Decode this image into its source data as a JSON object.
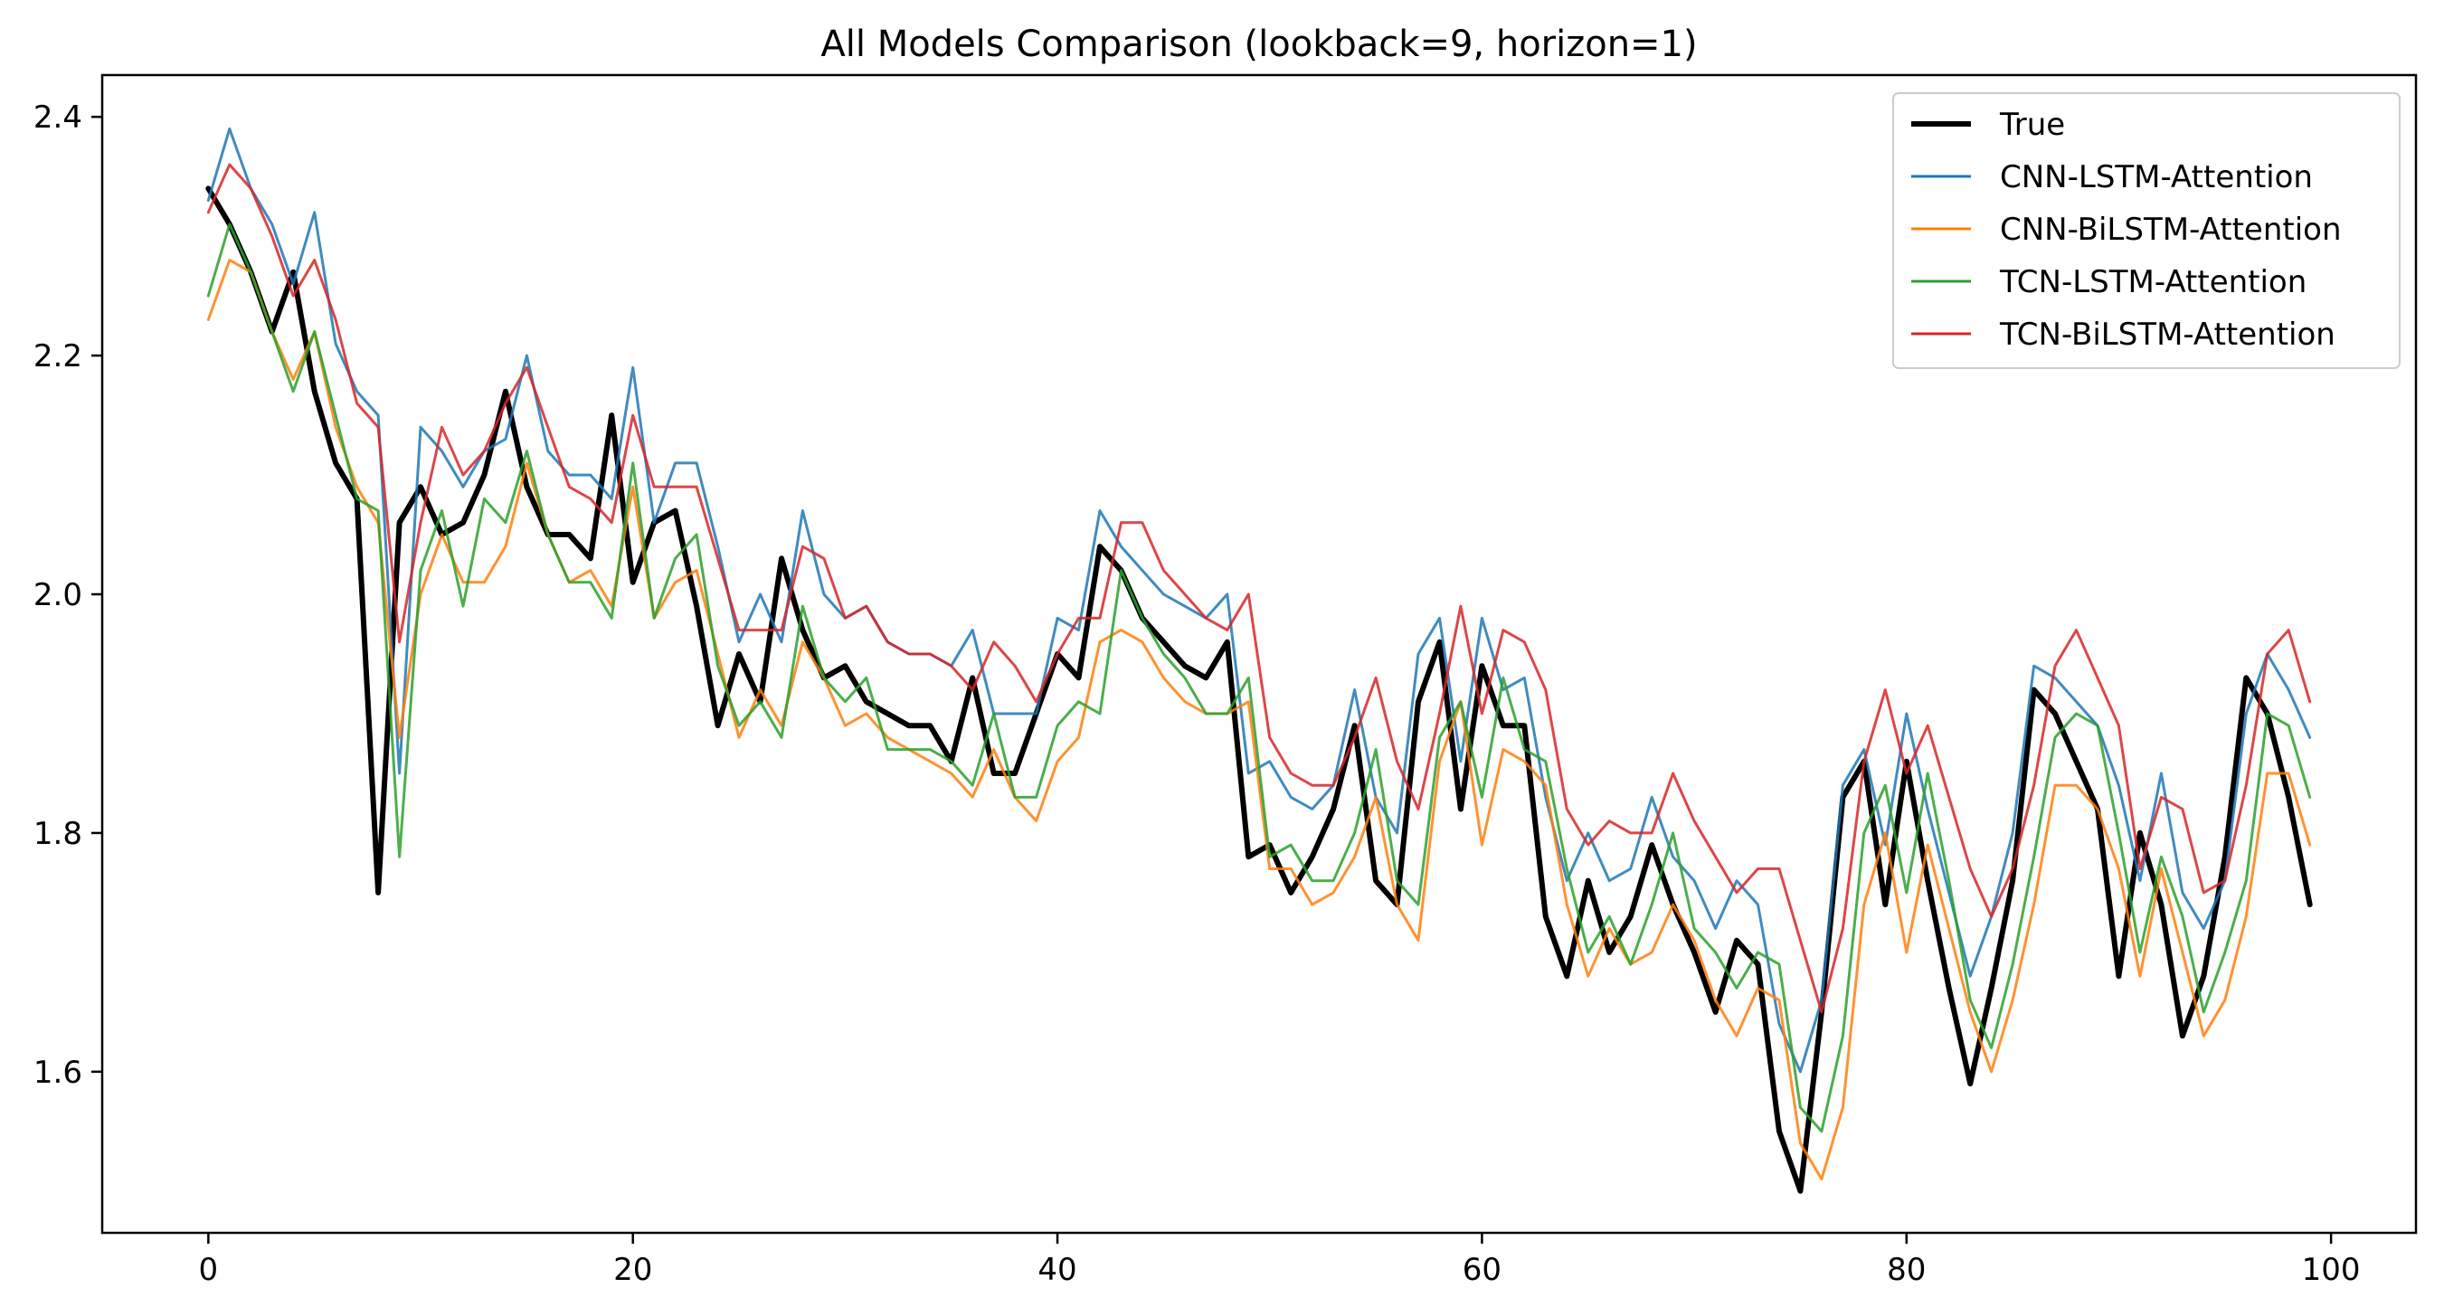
{
  "chart_data": {
    "type": "line",
    "title": "All Models Comparison (lookback=9, horizon=1)",
    "xlabel": "",
    "ylabel": "",
    "xlim": [
      -5,
      104
    ],
    "ylim": [
      1.465,
      2.435
    ],
    "xticks": [
      0,
      20,
      40,
      60,
      80,
      100
    ],
    "yticks": [
      1.6,
      1.8,
      2.0,
      2.2,
      2.4
    ],
    "grid": false,
    "legend_position": "top-right",
    "x": [
      0,
      1,
      2,
      3,
      4,
      5,
      6,
      7,
      8,
      9,
      10,
      11,
      12,
      13,
      14,
      15,
      16,
      17,
      18,
      19,
      20,
      21,
      22,
      23,
      24,
      25,
      26,
      27,
      28,
      29,
      30,
      31,
      32,
      33,
      34,
      35,
      36,
      37,
      38,
      39,
      40,
      41,
      42,
      43,
      44,
      45,
      46,
      47,
      48,
      49,
      50,
      51,
      52,
      53,
      54,
      55,
      56,
      57,
      58,
      59,
      60,
      61,
      62,
      63,
      64,
      65,
      66,
      67,
      68,
      69,
      70,
      71,
      72,
      73,
      74,
      75,
      76,
      77,
      78,
      79,
      80,
      81,
      82,
      83,
      84,
      85,
      86,
      87,
      88,
      89,
      90,
      91,
      92,
      93,
      94,
      95,
      96,
      97,
      98,
      99
    ],
    "series": [
      {
        "name": "True",
        "color": "#000000",
        "width": 6,
        "values": [
          2.34,
          2.31,
          2.27,
          2.22,
          2.27,
          2.17,
          2.11,
          2.08,
          1.75,
          2.06,
          2.09,
          2.05,
          2.06,
          2.1,
          2.17,
          2.09,
          2.05,
          2.05,
          2.03,
          2.15,
          2.01,
          2.06,
          2.07,
          1.99,
          1.89,
          1.95,
          1.91,
          2.03,
          1.97,
          1.93,
          1.94,
          1.91,
          1.9,
          1.89,
          1.89,
          1.86,
          1.93,
          1.85,
          1.85,
          1.9,
          1.95,
          1.93,
          2.04,
          2.02,
          1.98,
          1.96,
          1.94,
          1.93,
          1.96,
          1.78,
          1.79,
          1.75,
          1.78,
          1.82,
          1.89,
          1.76,
          1.74,
          1.91,
          1.96,
          1.82,
          1.94,
          1.89,
          1.89,
          1.73,
          1.68,
          1.76,
          1.7,
          1.73,
          1.79,
          1.74,
          1.7,
          1.65,
          1.71,
          1.69,
          1.55,
          1.5,
          1.65,
          1.83,
          1.86,
          1.74,
          1.86,
          1.76,
          1.67,
          1.59,
          1.67,
          1.76,
          1.92,
          1.9,
          1.86,
          1.82,
          1.68,
          1.8,
          1.74,
          1.63,
          1.68,
          1.78,
          1.93,
          1.9,
          1.83,
          1.74
        ]
      },
      {
        "name": "CNN-LSTM-Attention",
        "color": "#1f77b4",
        "width": 3,
        "values": [
          2.33,
          2.39,
          2.34,
          2.31,
          2.26,
          2.32,
          2.21,
          2.17,
          2.15,
          1.85,
          2.14,
          2.12,
          2.09,
          2.12,
          2.13,
          2.2,
          2.12,
          2.1,
          2.1,
          2.08,
          2.19,
          2.06,
          2.11,
          2.11,
          2.04,
          1.96,
          2.0,
          1.96,
          2.07,
          2.0,
          1.98,
          1.99,
          1.96,
          1.95,
          1.95,
          1.94,
          1.97,
          1.9,
          1.9,
          1.9,
          1.98,
          1.97,
          2.07,
          2.04,
          2.02,
          2.0,
          1.99,
          1.98,
          2.0,
          1.85,
          1.86,
          1.83,
          1.82,
          1.84,
          1.92,
          1.83,
          1.8,
          1.95,
          1.98,
          1.86,
          1.98,
          1.92,
          1.93,
          1.83,
          1.76,
          1.8,
          1.76,
          1.77,
          1.83,
          1.78,
          1.76,
          1.72,
          1.76,
          1.74,
          1.64,
          1.6,
          1.66,
          1.84,
          1.87,
          1.79,
          1.9,
          1.82,
          1.75,
          1.68,
          1.73,
          1.8,
          1.94,
          1.93,
          1.91,
          1.89,
          1.84,
          1.76,
          1.85,
          1.75,
          1.72,
          1.76,
          1.9,
          1.95,
          1.92,
          1.88
        ]
      },
      {
        "name": "CNN-BiLSTM-Attention",
        "color": "#ff7f0e",
        "width": 3,
        "values": [
          2.23,
          2.28,
          2.27,
          2.22,
          2.18,
          2.22,
          2.14,
          2.09,
          2.06,
          1.88,
          2.0,
          2.05,
          2.01,
          2.01,
          2.04,
          2.11,
          2.05,
          2.01,
          2.02,
          1.99,
          2.09,
          1.98,
          2.01,
          2.02,
          1.95,
          1.88,
          1.92,
          1.89,
          1.96,
          1.93,
          1.89,
          1.9,
          1.88,
          1.87,
          1.86,
          1.85,
          1.83,
          1.87,
          1.83,
          1.81,
          1.86,
          1.88,
          1.96,
          1.97,
          1.96,
          1.93,
          1.91,
          1.9,
          1.9,
          1.91,
          1.77,
          1.77,
          1.74,
          1.75,
          1.78,
          1.83,
          1.74,
          1.71,
          1.86,
          1.91,
          1.79,
          1.87,
          1.86,
          1.84,
          1.74,
          1.68,
          1.72,
          1.69,
          1.7,
          1.74,
          1.71,
          1.66,
          1.63,
          1.67,
          1.66,
          1.54,
          1.51,
          1.57,
          1.74,
          1.8,
          1.7,
          1.79,
          1.72,
          1.65,
          1.6,
          1.66,
          1.74,
          1.84,
          1.84,
          1.82,
          1.77,
          1.68,
          1.77,
          1.7,
          1.63,
          1.66,
          1.73,
          1.85,
          1.85,
          1.79
        ]
      },
      {
        "name": "TCN-LSTM-Attention",
        "color": "#2ca02c",
        "width": 3,
        "values": [
          2.25,
          2.31,
          2.27,
          2.22,
          2.17,
          2.22,
          2.15,
          2.08,
          2.07,
          1.78,
          2.02,
          2.07,
          1.99,
          2.08,
          2.06,
          2.12,
          2.05,
          2.01,
          2.01,
          1.98,
          2.11,
          1.98,
          2.03,
          2.05,
          1.94,
          1.89,
          1.91,
          1.88,
          1.99,
          1.93,
          1.91,
          1.93,
          1.87,
          1.87,
          1.87,
          1.86,
          1.84,
          1.9,
          1.83,
          1.83,
          1.89,
          1.91,
          1.9,
          2.02,
          1.98,
          1.95,
          1.93,
          1.9,
          1.9,
          1.93,
          1.78,
          1.79,
          1.76,
          1.76,
          1.8,
          1.87,
          1.76,
          1.74,
          1.88,
          1.91,
          1.83,
          1.93,
          1.87,
          1.86,
          1.77,
          1.7,
          1.73,
          1.69,
          1.74,
          1.8,
          1.72,
          1.7,
          1.67,
          1.7,
          1.69,
          1.57,
          1.55,
          1.63,
          1.8,
          1.84,
          1.75,
          1.85,
          1.76,
          1.66,
          1.62,
          1.69,
          1.78,
          1.88,
          1.9,
          1.89,
          1.8,
          1.7,
          1.78,
          1.73,
          1.65,
          1.7,
          1.76,
          1.9,
          1.89,
          1.83
        ]
      },
      {
        "name": "TCN-BiLSTM-Attention",
        "color": "#d62728",
        "width": 3,
        "values": [
          2.32,
          2.36,
          2.34,
          2.3,
          2.25,
          2.28,
          2.23,
          2.16,
          2.14,
          1.96,
          2.06,
          2.14,
          2.1,
          2.12,
          2.16,
          2.19,
          2.14,
          2.09,
          2.08,
          2.06,
          2.15,
          2.09,
          2.09,
          2.09,
          2.03,
          1.97,
          1.97,
          1.97,
          2.04,
          2.03,
          1.98,
          1.99,
          1.96,
          1.95,
          1.95,
          1.94,
          1.92,
          1.96,
          1.94,
          1.91,
          1.95,
          1.98,
          1.98,
          2.06,
          2.06,
          2.02,
          2.0,
          1.98,
          1.97,
          2.0,
          1.88,
          1.85,
          1.84,
          1.84,
          1.88,
          1.93,
          1.86,
          1.82,
          1.9,
          1.99,
          1.9,
          1.97,
          1.96,
          1.92,
          1.82,
          1.79,
          1.81,
          1.8,
          1.8,
          1.85,
          1.81,
          1.78,
          1.75,
          1.77,
          1.77,
          1.71,
          1.65,
          1.72,
          1.86,
          1.92,
          1.85,
          1.89,
          1.83,
          1.77,
          1.73,
          1.77,
          1.84,
          1.94,
          1.97,
          1.93,
          1.89,
          1.77,
          1.83,
          1.82,
          1.75,
          1.76,
          1.84,
          1.95,
          1.97,
          1.91
        ]
      }
    ]
  }
}
